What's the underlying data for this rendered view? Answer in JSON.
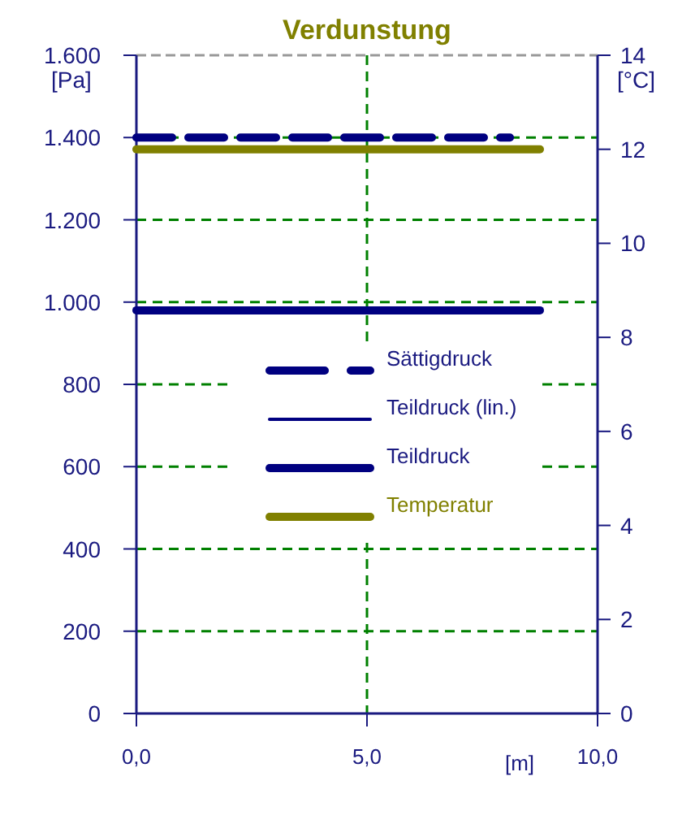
{
  "chart_data": {
    "type": "line",
    "title": "Verdunstung",
    "xlabel": "[m]",
    "ylabel": "[Pa]",
    "y2label": "[°C]",
    "x": [
      0,
      8.75
    ],
    "xlim": [
      0,
      10
    ],
    "xticks": [
      {
        "value": 0,
        "label": "0,0"
      },
      {
        "value": 5,
        "label": "5,0"
      },
      {
        "value": 10,
        "label": "10,0"
      }
    ],
    "ylim": [
      0,
      1600
    ],
    "yticks": [
      0,
      200,
      400,
      600,
      800,
      {
        "value": 1000,
        "label": "1.000"
      },
      {
        "value": 1200,
        "label": "1.200"
      },
      {
        "value": 1400,
        "label": "1.400"
      },
      {
        "value": 1600,
        "label": "1.600"
      }
    ],
    "y2lim": [
      0,
      14
    ],
    "y2ticks": [
      0,
      2,
      4,
      6,
      8,
      10,
      12,
      14
    ],
    "grid": true,
    "legend": "center",
    "series": [
      {
        "name": "Sättigdruck",
        "color": "#000080",
        "values": [
          1400,
          1400
        ],
        "x": [
          0,
          8.1
        ],
        "line_style": "dashed"
      },
      {
        "name": "Teildruck (lin.)",
        "color": "#000080",
        "values": [
          null,
          null
        ]
      },
      {
        "name": "Teildruck",
        "color": "#000080",
        "values": [
          980,
          980
        ]
      },
      {
        "name": "Temperatur",
        "color": "#808000",
        "values": [
          12,
          12
        ],
        "axis": "y2"
      }
    ]
  }
}
